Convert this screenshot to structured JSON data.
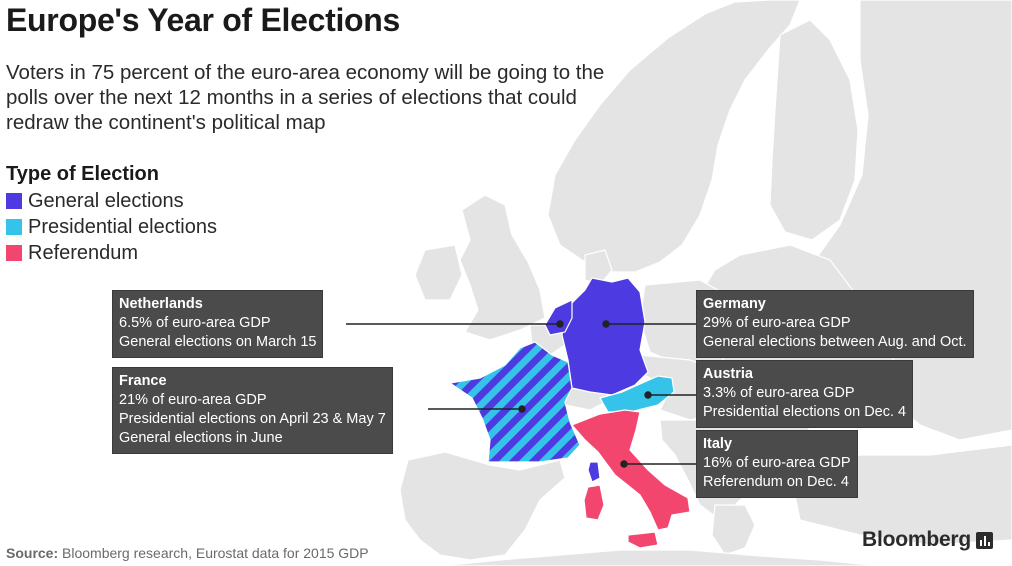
{
  "title": "Europe's Year of Elections",
  "subtitle": "Voters in 75 percent of the euro-area economy will be going to the polls over the next 12 months in a series of elections that could redraw the continent's political map",
  "legend": {
    "title": "Type of Election",
    "items": [
      {
        "label": "General elections",
        "color": "#4d3ae0"
      },
      {
        "label": "Presidential elections",
        "color": "#35c3ea"
      },
      {
        "label": "Referendum",
        "color": "#f2466e"
      }
    ]
  },
  "colors": {
    "land": "#e4e4e4",
    "border": "#ffffff",
    "callout_bg": "#4b4b4b",
    "general": "#4d3ae0",
    "presidential": "#35c3ea",
    "referendum": "#f2466e"
  },
  "callouts": {
    "netherlands": {
      "name": "Netherlands",
      "gdp": "6.5% of euro-area GDP",
      "line1": "General elections on March 15"
    },
    "france": {
      "name": "France",
      "gdp": "21% of euro-area GDP",
      "line1": "Presidential elections on April 23 & May 7",
      "line2": "General elections in June"
    },
    "germany": {
      "name": "Germany",
      "gdp": "29% of euro-area GDP",
      "line1": "General elections between Aug. and Oct."
    },
    "austria": {
      "name": "Austria",
      "gdp": "3.3% of euro-area GDP",
      "line1": "Presidential elections on Dec. 4"
    },
    "italy": {
      "name": "Italy",
      "gdp": "16% of euro-area GDP",
      "line1": "Referendum on Dec. 4"
    }
  },
  "source": {
    "label": "Source:",
    "text": "Bloomberg research, Eurostat data for 2015 GDP"
  },
  "brand": {
    "name": "Bloomberg",
    "icon": "bloomberg-bars-icon"
  }
}
